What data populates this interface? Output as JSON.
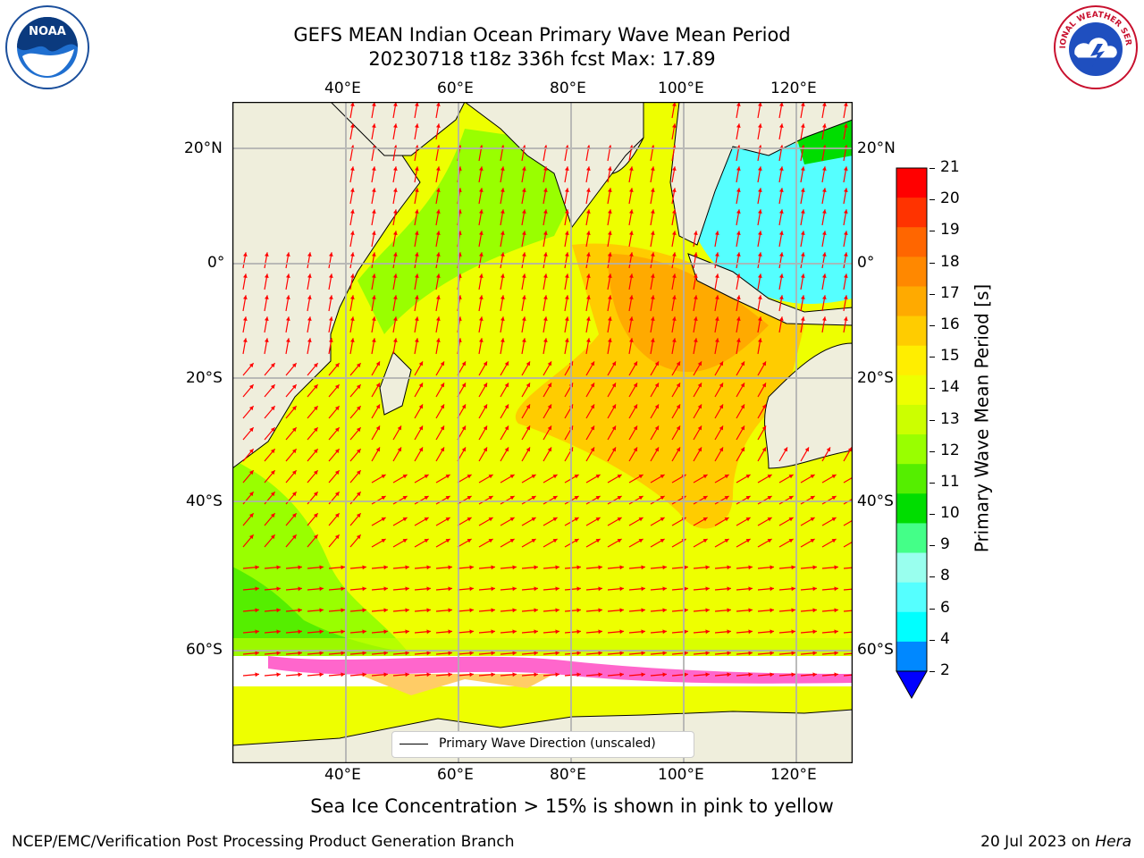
{
  "title": {
    "line1": "GEFS MEAN Indian Ocean Primary Wave Mean Period",
    "line2": "20230718 t18z 336h fcst   Max: 17.89"
  },
  "map": {
    "lon_range": [
      20,
      130
    ],
    "lat_range": [
      -75,
      28
    ],
    "lon_ticks": [
      "40°E",
      "60°E",
      "80°E",
      "100°E",
      "120°E"
    ],
    "lat_ticks": [
      "20°N",
      "0°",
      "20°S",
      "40°S",
      "60°S"
    ],
    "land_color": "#efeedc",
    "ice_colors": [
      "#ff00ff",
      "#ff66cc",
      "#ffcc66",
      "#ffff66"
    ],
    "arrow_color": "#ff0000"
  },
  "colorbar": {
    "label": "Primary Wave Mean Period [s]",
    "ticks": [
      "21",
      "20",
      "19",
      "18",
      "17",
      "16",
      "15",
      "14",
      "13",
      "12",
      "11",
      "10",
      "9",
      "8",
      "6",
      "4",
      "2"
    ],
    "colors": [
      "#ff0000",
      "#ff3300",
      "#ff6600",
      "#ff8800",
      "#ffaa00",
      "#ffcc00",
      "#ffee00",
      "#eeff00",
      "#ccff00",
      "#99ff00",
      "#55ee00",
      "#00dd00",
      "#44ff88",
      "#99ffee",
      "#55ffff",
      "#00ffff",
      "#0088ff"
    ],
    "underflow_color": "#0000ff"
  },
  "legend": {
    "label": "Primary Wave Direction (unscaled)"
  },
  "ice_note": "Sea Ice Concentration > 15% is shown in pink to yellow",
  "footer": {
    "left": "NCEP/EMC/Verification Post Processing Product Generation Branch",
    "right_date": "20 Jul 2023 on ",
    "right_host": "Hera"
  },
  "logos": {
    "noaa_text": "NOAA",
    "nws_text": "NATIONAL WEATHER SERVICE"
  }
}
